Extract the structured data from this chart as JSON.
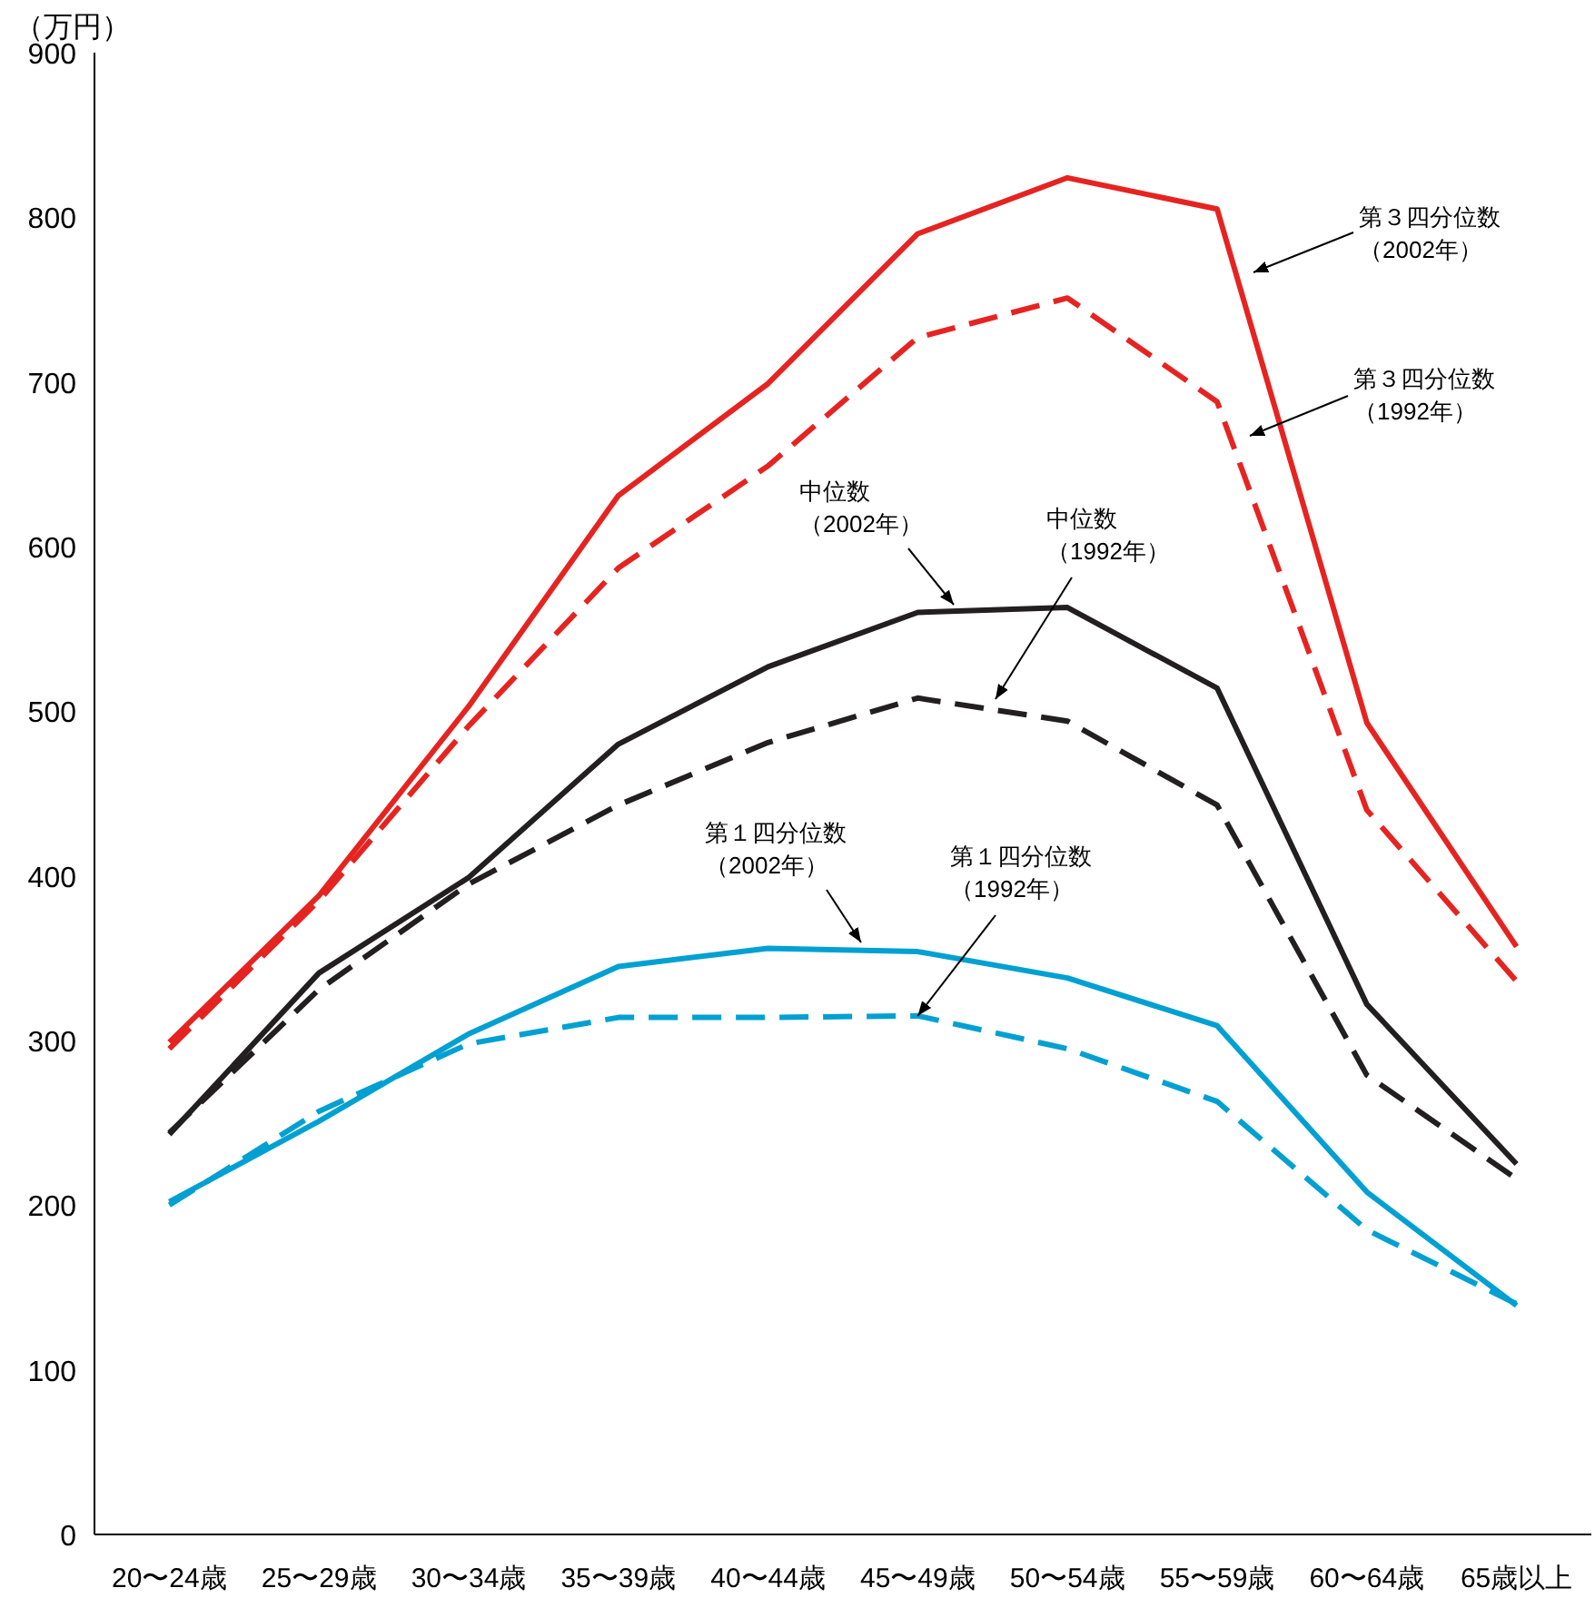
{
  "chart_data": {
    "type": "line",
    "ylabel": "（万円）",
    "categories": [
      "20〜24歳",
      "25〜29歳",
      "30〜34歳",
      "35〜39歳",
      "40〜44歳",
      "45〜49歳",
      "50〜54歳",
      "55〜59歳",
      "60〜64歳",
      "65歳以上"
    ],
    "ylim": [
      0,
      900
    ],
    "yticks": [
      0,
      100,
      200,
      300,
      400,
      500,
      600,
      700,
      800,
      900
    ],
    "grid": false,
    "marker": "none",
    "series": [
      {
        "color": "#e52421",
        "line_style": "solid",
        "values": [
          299,
          388,
          503,
          631,
          699,
          790,
          824,
          805,
          493,
          357
        ]
      },
      {
        "color": "#e52421",
        "line_style": "dashed",
        "values": [
          295,
          385,
          491,
          587,
          649,
          727,
          751,
          688,
          440,
          336
        ]
      },
      {
        "color": "#231f20",
        "line_style": "solid",
        "values": [
          243,
          341,
          399,
          480,
          527,
          560,
          563,
          514,
          322,
          225
        ]
      },
      {
        "color": "#231f20",
        "line_style": "dashed",
        "values": [
          244,
          331,
          395,
          443,
          481,
          508,
          494,
          443,
          279,
          216
        ]
      },
      {
        "color": "#00a0d2",
        "line_style": "solid",
        "values": [
          202,
          251,
          304,
          345,
          356,
          354,
          338,
          309,
          208,
          139
        ]
      },
      {
        "color": "#00a0d2",
        "line_style": "dashed",
        "values": [
          200,
          257,
          298,
          314,
          314,
          315,
          295,
          263,
          185,
          140
        ]
      }
    ],
    "annotations": [
      "第３四分位数（2002年）",
      "第３四分位数（1992年）",
      "中位数（2002年）",
      "中位数（1992年）",
      "第１四分位数（2002年）",
      {
        "text": "第１四分位数（1992年）",
        "x": "45〜49歳",
        "y": 315
      }
    ]
  }
}
